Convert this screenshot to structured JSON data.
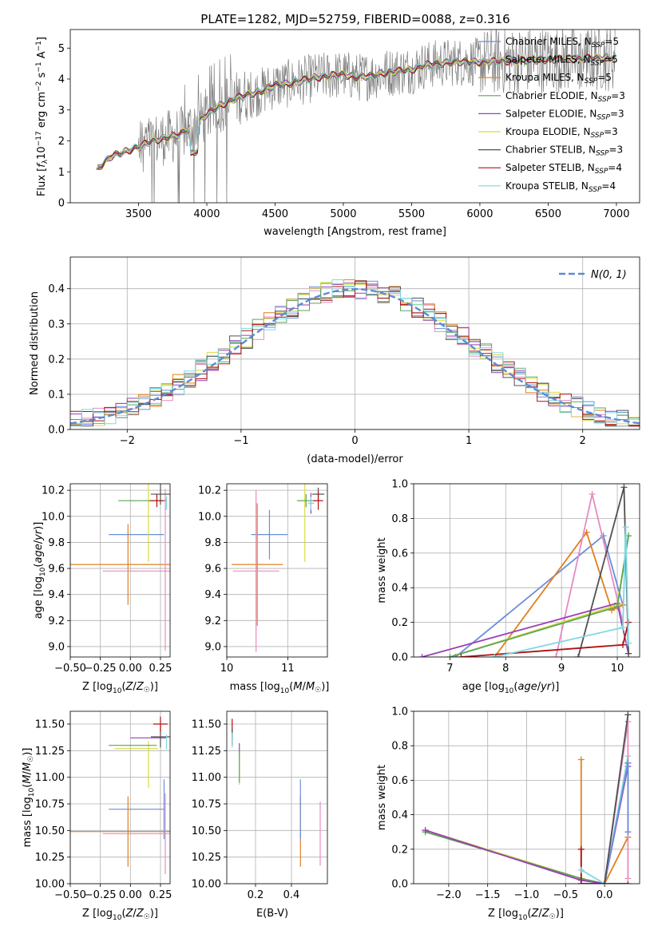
{
  "figure_title": "PLATE=1282, MJD=52759, FIBERID=0088, z=0.316",
  "colors": {
    "Chabrier MILES": "#6a8fd8",
    "Salpeter MILES": "#e68bc0",
    "Kroupa MILES": "#e07f20",
    "Chabrier ELODIE": "#5aa55a",
    "Salpeter ELODIE": "#9a3fb5",
    "Kroupa ELODIE": "#d8dc3c",
    "Chabrier STELIB": "#505050",
    "Salpeter STELIB": "#b01010",
    "Kroupa STELIB": "#7fd8e0",
    "data": "#808080"
  },
  "chart_data": [
    {
      "id": "spectrum",
      "type": "line",
      "xlabel": "wavelength [Angstrom, rest frame]",
      "ylabel": "Flux [f_λ 10^-17 erg cm^-2 s^-1 A^-1]",
      "xlim": [
        3000,
        7170
      ],
      "ylim": [
        0,
        5.6
      ],
      "xticks": [
        3500,
        4000,
        4500,
        5000,
        5500,
        6000,
        6500,
        7000
      ],
      "yticks": [
        0,
        1,
        2,
        3,
        4,
        5
      ],
      "legend_position": "upper-right",
      "legend": [
        {
          "model": "Chabrier MILES",
          "label": "Chabrier MILES, N",
          "sub": "SSP",
          "tail": "=5"
        },
        {
          "model": "Salpeter MILES",
          "label": "Salpeter MILES, N",
          "sub": "SSP",
          "tail": "=5"
        },
        {
          "model": "Kroupa MILES",
          "label": "Kroupa MILES, N",
          "sub": "SSP",
          "tail": "=5"
        },
        {
          "model": "Chabrier ELODIE",
          "label": "Chabrier ELODIE, N",
          "sub": "SSP",
          "tail": "=3"
        },
        {
          "model": "Salpeter ELODIE",
          "label": "Salpeter ELODIE, N",
          "sub": "SSP",
          "tail": "=3"
        },
        {
          "model": "Kroupa ELODIE",
          "label": "Kroupa ELODIE, N",
          "sub": "SSP",
          "tail": "=3"
        },
        {
          "model": "Chabrier STELIB",
          "label": "Chabrier STELIB, N",
          "sub": "SSP",
          "tail": "=3"
        },
        {
          "model": "Salpeter STELIB",
          "label": "Salpeter STELIB, N",
          "sub": "SSP",
          "tail": "=4"
        },
        {
          "model": "Kroupa STELIB",
          "label": "Kroupa STELIB, N",
          "sub": "SSP",
          "tail": "=4"
        }
      ],
      "continuum_model": [
        [
          3200,
          1.1
        ],
        [
          3300,
          1.5
        ],
        [
          3400,
          1.65
        ],
        [
          3500,
          1.8
        ],
        [
          3600,
          2.0
        ],
        [
          3700,
          2.1
        ],
        [
          3800,
          2.2
        ],
        [
          3900,
          2.5
        ],
        [
          4000,
          2.85
        ],
        [
          4100,
          3.15
        ],
        [
          4200,
          3.35
        ],
        [
          4300,
          3.5
        ],
        [
          4400,
          3.6
        ],
        [
          4500,
          3.8
        ],
        [
          4600,
          3.85
        ],
        [
          4700,
          3.95
        ],
        [
          4800,
          4.05
        ],
        [
          4900,
          4.1
        ],
        [
          5000,
          4.15
        ],
        [
          5100,
          4.05
        ],
        [
          5200,
          4.1
        ],
        [
          5300,
          4.2
        ],
        [
          5400,
          4.25
        ],
        [
          5500,
          4.3
        ],
        [
          5600,
          4.45
        ],
        [
          5700,
          4.5
        ],
        [
          5800,
          4.55
        ],
        [
          5900,
          4.55
        ],
        [
          6000,
          4.55
        ]
      ],
      "data_range": [
        3190,
        6990
      ]
    },
    {
      "id": "residuals",
      "type": "line",
      "xlabel": "(data-model)/error",
      "ylabel": "Normed distribution",
      "xlim": [
        -2.5,
        2.5
      ],
      "ylim": [
        0,
        0.49
      ],
      "xticks": [
        -2,
        -1,
        0,
        1,
        2
      ],
      "yticks": [
        0.0,
        0.1,
        0.2,
        0.3,
        0.4
      ],
      "legend": "N(0, 1)",
      "legend_position": "upper-right",
      "gaussian": {
        "mean": 0,
        "sigma": 1,
        "color": "#5b8bd6"
      },
      "hist_bin_width": 0.1
    },
    {
      "id": "age_vs_Z",
      "type": "scatter",
      "xlabel": "Z [log10(Z/Z☉)]",
      "ylabel": "age  [log10(age/yr)]",
      "xlim": [
        -0.5,
        0.33
      ],
      "ylim": [
        8.92,
        10.25
      ],
      "xticks": [
        -0.5,
        -0.25,
        0.0,
        0.25
      ],
      "xticklabels": [
        "−0.50",
        "−0.25",
        "0.00",
        "0.25"
      ],
      "yticks": [
        9.0,
        9.2,
        9.4,
        9.6,
        9.8,
        10.0,
        10.2
      ],
      "points": [
        {
          "model": "Chabrier MILES",
          "x": 0.05,
          "xerr": 0.23,
          "y": 9.86,
          "yerr": 0.0
        },
        {
          "model": "Kroupa MILES",
          "x": -0.02,
          "xerr": 0.5,
          "y": 9.63,
          "yerr": 0.0
        },
        {
          "model": "Kroupa MILES",
          "x": -0.02,
          "xerr": 0.0,
          "y": 9.63,
          "yerr": 0.31
        },
        {
          "model": "Salpeter MILES",
          "x": 0.29,
          "xerr": 0.0,
          "y": 9.59,
          "yerr": 0.62
        },
        {
          "model": "Salpeter MILES",
          "x": 0.1,
          "xerr": 0.33,
          "y": 9.58,
          "yerr": 0.0
        },
        {
          "model": "Kroupa ELODIE",
          "x": 0.15,
          "xerr": 0.0,
          "y": 10.12,
          "yerr": 0.47
        },
        {
          "model": "Chabrier ELODIE",
          "x": 0.1,
          "xerr": 0.2,
          "y": 10.12,
          "yerr": 0.0
        },
        {
          "model": "Chabrier STELIB",
          "x": 0.25,
          "xerr": 0.08,
          "y": 10.17,
          "yerr": 0.08
        },
        {
          "model": "Salpeter STELIB",
          "x": 0.22,
          "xerr": 0.06,
          "y": 10.12,
          "yerr": 0.05
        },
        {
          "model": "Kroupa STELIB",
          "x": 0.3,
          "xerr": 0.0,
          "y": 10.1,
          "yerr": 0.05
        }
      ]
    },
    {
      "id": "age_vs_mass",
      "type": "scatter",
      "xlabel": "mass [log10(M/M☉)]",
      "ylabel": "",
      "xlim": [
        10.0,
        11.65
      ],
      "ylim": [
        8.92,
        10.25
      ],
      "xticks": [
        10,
        11
      ],
      "yticks": [
        9.0,
        9.2,
        9.4,
        9.6,
        9.8,
        10.0,
        10.2
      ],
      "points": [
        {
          "model": "Chabrier MILES",
          "x": 10.7,
          "xerr": 0.3,
          "y": 9.86,
          "yerr": 0.19
        },
        {
          "model": "Kroupa MILES",
          "x": 10.5,
          "xerr": 0.42,
          "y": 9.63,
          "yerr": 0.47
        },
        {
          "model": "Salpeter MILES",
          "x": 10.48,
          "xerr": 0.38,
          "y": 9.58,
          "yerr": 0.62
        },
        {
          "model": "Kroupa ELODIE",
          "x": 11.28,
          "xerr": 0.12,
          "y": 10.12,
          "yerr": 0.47
        },
        {
          "model": "Chabrier ELODIE",
          "x": 11.3,
          "xerr": 0.15,
          "y": 10.12,
          "yerr": 0.05
        },
        {
          "model": "Chabrier STELIB",
          "x": 11.5,
          "xerr": 0.1,
          "y": 10.17,
          "yerr": 0.05
        },
        {
          "model": "Salpeter STELIB",
          "x": 11.5,
          "xerr": 0.08,
          "y": 10.12,
          "yerr": 0.07
        },
        {
          "model": "Salpeter ELODIE",
          "x": 11.38,
          "xerr": 0.05,
          "y": 10.1,
          "yerr": 0.08
        },
        {
          "model": "Kroupa STELIB",
          "x": 11.38,
          "xerr": 0.05,
          "y": 10.1,
          "yerr": 0.05
        }
      ]
    },
    {
      "id": "massweight_vs_age",
      "type": "line",
      "xlabel": "age  [log10(age/yr)]",
      "ylabel": "mass weight",
      "xlim": [
        6.35,
        10.4
      ],
      "ylim": [
        0,
        1.0
      ],
      "xticks": [
        7,
        8,
        9,
        10
      ],
      "yticks": [
        0.0,
        0.2,
        0.4,
        0.6,
        0.8,
        1.0
      ],
      "series": [
        {
          "model": "Chabrier MILES",
          "points": [
            [
              7.1,
              0.0
            ],
            [
              9.75,
              0.7
            ],
            [
              10.1,
              0.3
            ]
          ]
        },
        {
          "model": "Kroupa MILES",
          "points": [
            [
              7.8,
              0.0
            ],
            [
              9.45,
              0.72
            ],
            [
              9.9,
              0.27
            ],
            [
              10.1,
              0.3
            ]
          ]
        },
        {
          "model": "Salpeter MILES",
          "points": [
            [
              8.9,
              0.0
            ],
            [
              9.55,
              0.94
            ],
            [
              10.1,
              0.2
            ]
          ]
        },
        {
          "model": "Salpeter ELODIE",
          "points": [
            [
              6.5,
              0.0
            ],
            [
              10.0,
              0.31
            ],
            [
              10.2,
              0.02
            ]
          ]
        },
        {
          "model": "Kroupa ELODIE",
          "points": [
            [
              7.0,
              0.0
            ],
            [
              10.0,
              0.3
            ],
            [
              10.2,
              0.7
            ]
          ]
        },
        {
          "model": "Chabrier ELODIE",
          "points": [
            [
              7.0,
              0.0
            ],
            [
              10.0,
              0.29
            ],
            [
              10.2,
              0.7
            ]
          ]
        },
        {
          "model": "Chabrier STELIB",
          "points": [
            [
              9.3,
              0.0
            ],
            [
              10.12,
              0.98
            ],
            [
              10.2,
              0.02
            ]
          ]
        },
        {
          "model": "Salpeter STELIB",
          "points": [
            [
              7.2,
              0.0
            ],
            [
              10.1,
              0.07
            ],
            [
              10.2,
              0.2
            ]
          ]
        },
        {
          "model": "Kroupa STELIB",
          "points": [
            [
              7.8,
              0.0
            ],
            [
              10.1,
              0.17
            ],
            [
              10.15,
              0.75
            ],
            [
              10.2,
              0.08
            ]
          ]
        }
      ]
    },
    {
      "id": "mass_vs_Z",
      "type": "scatter",
      "xlabel": "Z [log10(Z/Z☉)]",
      "ylabel": "mass [log10(M/M☉)]",
      "xlim": [
        -0.5,
        0.33
      ],
      "ylim": [
        10.0,
        11.62
      ],
      "xticks": [
        -0.5,
        -0.25,
        0.0,
        0.25
      ],
      "xticklabels": [
        "−0.50",
        "−0.25",
        "0.00",
        "0.25"
      ],
      "yticks": [
        10.0,
        10.25,
        10.5,
        10.75,
        11.0,
        11.25,
        11.5
      ],
      "points": [
        {
          "model": "Chabrier MILES",
          "x": 0.05,
          "xerr": 0.23,
          "y": 10.7,
          "yerr": 0.0
        },
        {
          "model": "Chabrier MILES",
          "x": 0.28,
          "xerr": 0.0,
          "y": 10.7,
          "yerr": 0.28
        },
        {
          "model": "Kroupa MILES",
          "x": -0.02,
          "xerr": 0.5,
          "y": 10.49,
          "yerr": 0.0
        },
        {
          "model": "Kroupa MILES",
          "x": -0.02,
          "xerr": 0.0,
          "y": 10.49,
          "yerr": 0.33
        },
        {
          "model": "Salpeter MILES",
          "x": 0.1,
          "xerr": 0.33,
          "y": 10.47,
          "yerr": 0.0
        },
        {
          "model": "Salpeter MILES",
          "x": 0.29,
          "xerr": 0.0,
          "y": 10.47,
          "yerr": 0.38
        },
        {
          "model": "Kroupa ELODIE",
          "x": 0.15,
          "xerr": 0.0,
          "y": 11.12,
          "yerr": 0.22
        },
        {
          "model": "Kroupa ELODIE",
          "x": 0.05,
          "xerr": 0.18,
          "y": 11.27,
          "yerr": 0.0
        },
        {
          "model": "Chabrier ELODIE",
          "x": 0.02,
          "xerr": 0.2,
          "y": 11.3,
          "yerr": 0.0
        },
        {
          "model": "Salpeter ELODIE",
          "x": 0.15,
          "xerr": 0.15,
          "y": 11.37,
          "yerr": 0.0
        },
        {
          "model": "Chabrier STELIB",
          "x": 0.25,
          "xerr": 0.08,
          "y": 11.38,
          "yerr": 0.1
        },
        {
          "model": "Salpeter STELIB",
          "x": 0.25,
          "xerr": 0.06,
          "y": 11.5,
          "yerr": 0.07
        },
        {
          "model": "Kroupa STELIB",
          "x": 0.3,
          "xerr": 0.0,
          "y": 11.33,
          "yerr": 0.07
        }
      ]
    },
    {
      "id": "mass_vs_EBV",
      "type": "scatter",
      "xlabel": "E(B-V)",
      "ylabel": "",
      "xlim": [
        0.04,
        0.6
      ],
      "ylim": [
        10.0,
        11.62
      ],
      "xticks": [
        0.2,
        0.4
      ],
      "yticks": [
        10.0,
        10.25,
        10.5,
        10.75,
        11.0,
        11.25,
        11.5
      ],
      "points": [
        {
          "model": "Kroupa MILES",
          "x": 0.45,
          "xerr": 0.0,
          "y": 10.49,
          "yerr": 0.33
        },
        {
          "model": "Chabrier MILES",
          "x": 0.45,
          "xerr": 0.0,
          "y": 10.7,
          "yerr": 0.28
        },
        {
          "model": "Salpeter MILES",
          "x": 0.56,
          "xerr": 0.0,
          "y": 10.47,
          "yerr": 0.3
        },
        {
          "model": "Salpeter STELIB",
          "x": 0.07,
          "xerr": 0.0,
          "y": 11.45,
          "yerr": 0.1
        },
        {
          "model": "Chabrier STELIB",
          "x": 0.07,
          "xerr": 0.0,
          "y": 11.38,
          "yerr": 0.08
        },
        {
          "model": "Kroupa STELIB",
          "x": 0.07,
          "xerr": 0.0,
          "y": 11.35,
          "yerr": 0.07
        },
        {
          "model": "Salpeter ELODIE",
          "x": 0.11,
          "xerr": 0.0,
          "y": 11.25,
          "yerr": 0.07
        },
        {
          "model": "Kroupa ELODIE",
          "x": 0.11,
          "xerr": 0.0,
          "y": 11.08,
          "yerr": 0.15
        },
        {
          "model": "Chabrier ELODIE",
          "x": 0.11,
          "xerr": 0.0,
          "y": 11.1,
          "yerr": 0.15
        }
      ]
    },
    {
      "id": "massweight_vs_Z",
      "type": "line",
      "xlabel": "Z [log10(Z/Z☉)]",
      "ylabel": "mass weight",
      "xlim": [
        -2.45,
        0.45
      ],
      "ylim": [
        0,
        1.0
      ],
      "xticks": [
        -2.0,
        -1.5,
        -1.0,
        -0.5,
        0.0
      ],
      "xticklabels": [
        "−2.0",
        "−1.5",
        "−1.0",
        "−0.5",
        "0.0"
      ],
      "yticks": [
        0.0,
        0.2,
        0.4,
        0.6,
        0.8,
        1.0
      ],
      "series": [
        {
          "model": "Kroupa ELODIE",
          "points": [
            [
              -2.3,
              0.31
            ],
            [
              -0.3,
              0.03
            ],
            [
              0.0,
              0.0
            ],
            [
              0.3,
              0.7
            ]
          ]
        },
        {
          "model": "Chabrier ELODIE",
          "points": [
            [
              -2.3,
              0.3
            ],
            [
              -0.3,
              0.03
            ],
            [
              0.0,
              0.0
            ],
            [
              0.3,
              0.7
            ]
          ]
        },
        {
          "model": "Salpeter ELODIE",
          "points": [
            [
              -2.3,
              0.31
            ],
            [
              -0.3,
              0.02
            ],
            [
              0.0,
              0.0
            ],
            [
              0.3,
              0.68
            ]
          ]
        },
        {
          "model": "Kroupa MILES",
          "points": [
            [
              -0.3,
              0.72
            ],
            [
              -0.3,
              0.0
            ],
            [
              0.0,
              0.0
            ],
            [
              0.3,
              0.27
            ]
          ]
        },
        {
          "model": "Salpeter STELIB",
          "points": [
            [
              -0.3,
              0.2
            ],
            [
              -0.3,
              0.0
            ],
            [
              0.0,
              0.0
            ],
            [
              0.3,
              0.0
            ]
          ]
        },
        {
          "model": "Kroupa STELIB",
          "points": [
            [
              -0.3,
              0.08
            ],
            [
              0.0,
              0.0
            ],
            [
              0.3,
              0.74
            ]
          ]
        },
        {
          "model": "Salpeter MILES",
          "points": [
            [
              0.0,
              0.0
            ],
            [
              0.3,
              0.94
            ],
            [
              0.3,
              0.03
            ]
          ]
        },
        {
          "model": "Chabrier MILES",
          "points": [
            [
              0.0,
              0.0
            ],
            [
              0.3,
              0.7
            ],
            [
              0.3,
              0.3
            ]
          ]
        },
        {
          "model": "Chabrier STELIB",
          "points": [
            [
              -0.3,
              0.0
            ],
            [
              0.0,
              0.0
            ],
            [
              0.3,
              0.98
            ]
          ]
        }
      ]
    }
  ]
}
